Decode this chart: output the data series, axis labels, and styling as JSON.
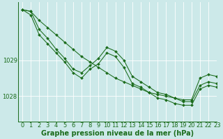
{
  "bg_color": "#cce9e9",
  "grid_color": "#b8d8d8",
  "line_color": "#1a6b1a",
  "marker_color": "#1a6b1a",
  "xlabel": "Graphe pression niveau de la mer (hPa)",
  "ylabel_ticks": [
    1028,
    1029
  ],
  "xlim": [
    -0.5,
    23
  ],
  "ylim": [
    1027.3,
    1030.6
  ],
  "series": [
    [
      1030.4,
      1030.35,
      1030.1,
      1029.9,
      1029.7,
      1029.5,
      1029.3,
      1029.1,
      1028.95,
      1028.8,
      1028.65,
      1028.5,
      1028.4,
      1028.3,
      1028.2,
      1028.1,
      1028.05,
      1028.0,
      1027.95,
      1027.9,
      1027.9,
      1028.5,
      1028.6,
      1028.55
    ],
    [
      1030.4,
      1030.35,
      1029.85,
      1029.6,
      1029.3,
      1029.05,
      1028.75,
      1028.65,
      1028.85,
      1029.05,
      1029.35,
      1029.25,
      1029.0,
      1028.55,
      1028.4,
      1028.25,
      1028.1,
      1028.05,
      1027.95,
      1027.85,
      1027.85,
      1028.3,
      1028.4,
      1028.35
    ],
    [
      1030.4,
      1030.25,
      1029.7,
      1029.45,
      1029.2,
      1028.95,
      1028.65,
      1028.5,
      1028.75,
      1028.9,
      1029.2,
      1029.1,
      1028.8,
      1028.35,
      1028.25,
      1028.1,
      1027.95,
      1027.9,
      1027.8,
      1027.75,
      1027.75,
      1028.2,
      1028.3,
      1028.25
    ]
  ],
  "tick_fontsize": 6,
  "label_fontsize": 7,
  "figsize": [
    3.2,
    2.0
  ],
  "dpi": 100
}
